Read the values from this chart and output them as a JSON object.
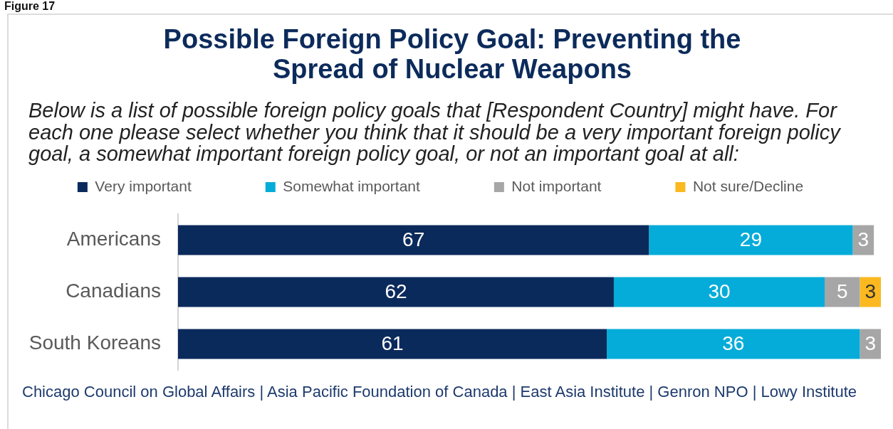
{
  "chart_data": {
    "type": "bar",
    "orientation": "horizontal",
    "stacked": true,
    "title": "Possible Foreign Policy Goal: Preventing the Spread of Nuclear Weapons",
    "subtitle": "Below is a list of possible foreign policy goals that [Respondent Country] might have. For each one please select whether you think that it should be a very important foreign policy goal, a somewhat important foreign policy goal, or not an important goal at all:",
    "categories": [
      "Americans",
      "Canadians",
      "South Koreans"
    ],
    "series": [
      {
        "name": "Very important",
        "color": "#0b2a5c",
        "values": [
          67,
          62,
          61
        ]
      },
      {
        "name": "Somewhat important",
        "color": "#05acd9",
        "values": [
          29,
          30,
          36
        ]
      },
      {
        "name": "Not important",
        "color": "#a6a6a6",
        "values": [
          3,
          5,
          3
        ]
      },
      {
        "name": "Not sure/Decline",
        "color": "#fbb81f",
        "values": [
          null,
          3,
          null
        ]
      }
    ],
    "xlim": [
      0,
      100
    ],
    "tick_labels": "y",
    "legend": "top",
    "data_labels": true,
    "annotations": [
      "Figure 17",
      "Chicago Council on Global Affairs | Asia Pacific Foundation of Canada | East Asia Institute | Genron NPO | Lowy Institute"
    ]
  }
}
